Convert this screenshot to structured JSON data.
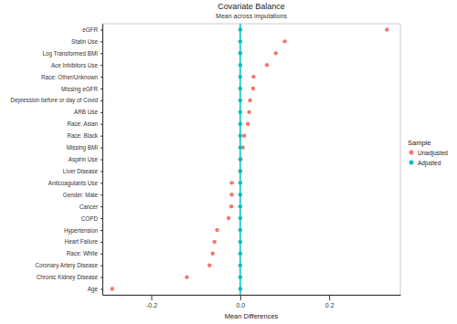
{
  "chart_data": {
    "type": "scatter",
    "orientation": "horizontal",
    "title": "Covariate Balance",
    "subtitle": "Mean across imputations",
    "x_label": "Mean Differences",
    "legend_title": "Sample",
    "legend": "right",
    "grid": false,
    "categories": [
      "eGFR",
      "Statin Use",
      "Log Transformed BMI",
      "Ace Inhibitors Use",
      "Race: Other/Unknown",
      "Missing eGFR",
      "Depression before or day of Covid",
      "ARB Use",
      "Race: Asian",
      "Race: Black",
      "Missing BMI",
      "Aspirin Use",
      "Liver Disease",
      "Anticoagulants Use",
      "Gender: Male",
      "Cancer",
      "COPD",
      "Hypertension",
      "Heart Failure",
      "Race: White",
      "Coronary Artery Disease",
      "Chronic Kidney Disease",
      "Age"
    ],
    "series": [
      {
        "name": "Unadjusted",
        "color": "#F8766D",
        "marker": "circle",
        "values": [
          0.33,
          0.1,
          0.08,
          0.06,
          0.03,
          0.029,
          0.022,
          0.02,
          0.017,
          0.009,
          0.006,
          0.001,
          0.0,
          -0.019,
          -0.019,
          -0.02,
          -0.026,
          -0.052,
          -0.058,
          -0.062,
          -0.069,
          -0.12,
          -0.288
        ]
      },
      {
        "name": "Adjusted",
        "color": "#00BFC4",
        "marker": "circle",
        "values": [
          0,
          0,
          0,
          0,
          0,
          0,
          0,
          0,
          0,
          0,
          0,
          0,
          0,
          0,
          0,
          0,
          0,
          0,
          0,
          0,
          0,
          0,
          0
        ]
      }
    ],
    "xlim": [
      -0.31,
      0.36
    ],
    "xticks": [
      {
        "value": -0.2,
        "label": "-0.2"
      },
      {
        "value": 0,
        "label": "0.0"
      },
      {
        "value": 0.2,
        "label": "0.2"
      }
    ]
  }
}
